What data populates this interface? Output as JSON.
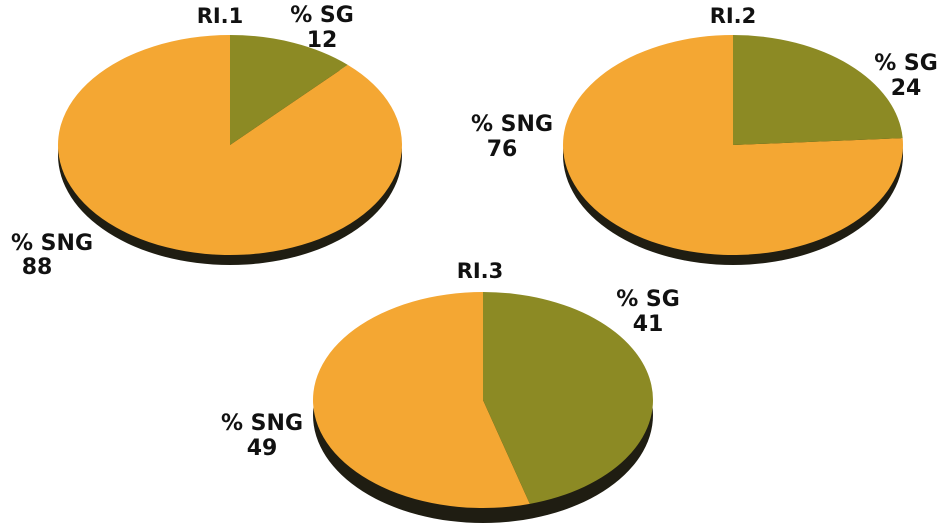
{
  "chart_data": [
    {
      "type": "pie",
      "title": "RI.1",
      "series": [
        {
          "name": "% SG",
          "value": 12,
          "label": "12",
          "color": "#8c8a24"
        },
        {
          "name": "% SNG",
          "value": 88,
          "label": "88",
          "color": "#f4a733"
        }
      ]
    },
    {
      "type": "pie",
      "title": "RI.2",
      "series": [
        {
          "name": "% SG",
          "value": 24,
          "label": "24",
          "color": "#8c8a24"
        },
        {
          "name": "% SNG",
          "value": 76,
          "label": "76",
          "color": "#f4a733"
        }
      ]
    },
    {
      "type": "pie",
      "title": "RI.3",
      "series": [
        {
          "name": "% SG",
          "value": 41,
          "label": "41",
          "color": "#8c8a24"
        },
        {
          "name": "% SNG",
          "value": 49,
          "label": "49",
          "color": "#f4a733"
        }
      ]
    }
  ],
  "colors": {
    "shadow": "#1f1d12",
    "text": "#111111"
  }
}
